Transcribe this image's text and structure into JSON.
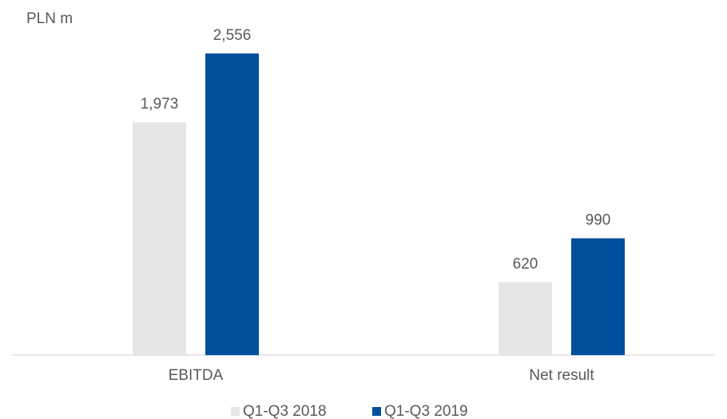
{
  "chart_data": {
    "type": "bar",
    "unit_label": "PLN m",
    "categories": [
      "EBITDA",
      "Net result"
    ],
    "series": [
      {
        "name": "Q1-Q3 2018",
        "color": "#e6e6e6",
        "values": [
          1973,
          620
        ],
        "value_labels": [
          "1,973",
          "620"
        ]
      },
      {
        "name": "Q1-Q3 2019",
        "color": "#00509e",
        "values": [
          2556,
          990
        ],
        "value_labels": [
          "2,556",
          "990"
        ]
      }
    ],
    "legend": "bottom"
  }
}
